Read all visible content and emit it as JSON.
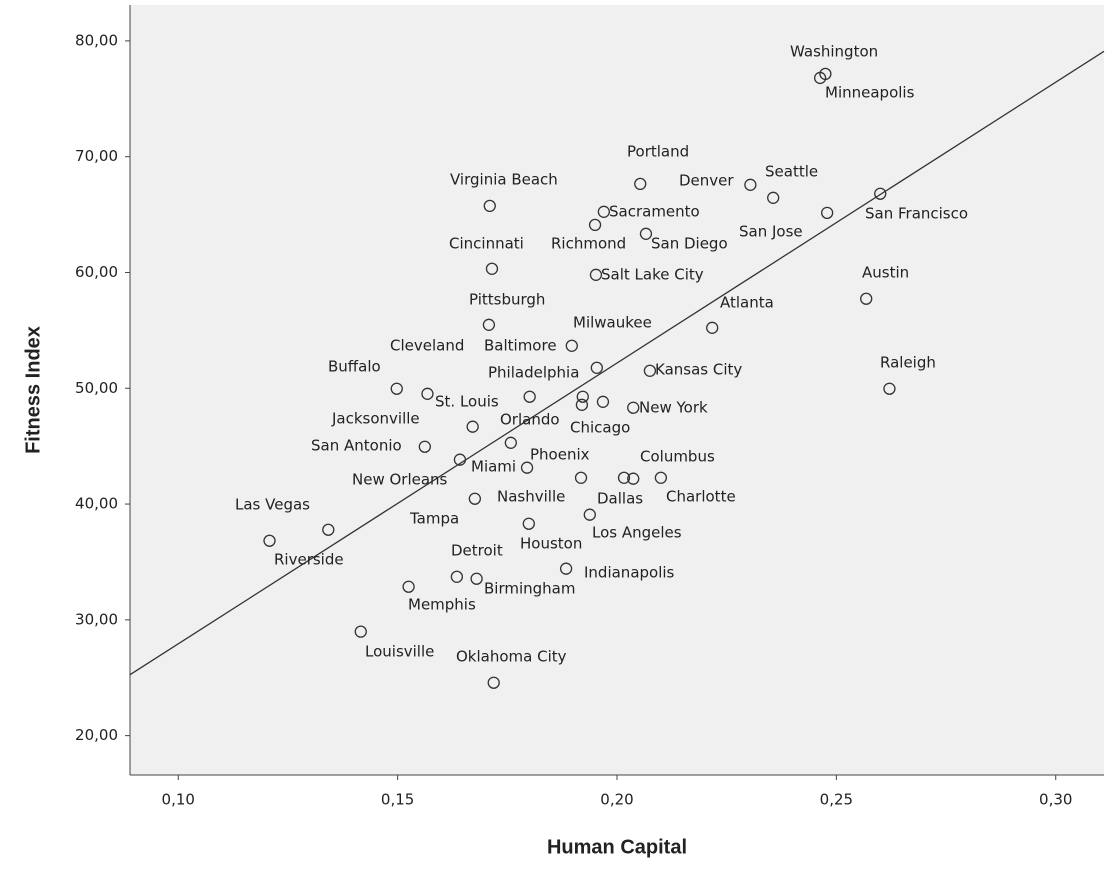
{
  "chart_data": {
    "type": "scatter",
    "x_label": "Human Capital",
    "y_label": "Fitness Index",
    "xlim": [
      0.089,
      0.311
    ],
    "ylim": [
      16.6,
      83.1
    ],
    "xticks": [
      {
        "value": 0.1,
        "label": "0,10"
      },
      {
        "value": 0.15,
        "label": "0,15"
      },
      {
        "value": 0.2,
        "label": "0,20"
      },
      {
        "value": 0.25,
        "label": "0,25"
      },
      {
        "value": 0.3,
        "label": "0,30"
      }
    ],
    "yticks": [
      {
        "value": 20,
        "label": "20,00"
      },
      {
        "value": 30,
        "label": "30,00"
      },
      {
        "value": 40,
        "label": "40,00"
      },
      {
        "value": 50,
        "label": "50,00"
      },
      {
        "value": 60,
        "label": "60,00"
      },
      {
        "value": 70,
        "label": "70,00"
      },
      {
        "value": 80,
        "label": "80,00"
      }
    ],
    "color": "#333333",
    "fit_line": {
      "x": [
        0.089,
        0.311
      ],
      "y": [
        25.26,
        79.1
      ]
    },
    "labels": [
      "Washington",
      "Minneapolis",
      "Portland",
      "Denver",
      "Seattle",
      "San Francisco",
      "San Jose",
      "Virginia Beach",
      "Sacramento",
      "Richmond",
      "San Diego",
      "Cincinnati",
      "Salt Lake City",
      "Austin",
      "Pittsburgh",
      "Atlanta",
      "Milwaukee",
      "Cleveland",
      "Baltimore",
      "Buffalo",
      "Philadelphia",
      "Kansas City",
      "Raleigh",
      "St. Louis",
      "New York",
      "Jacksonville",
      "Orlando",
      "Chicago",
      "San Antonio",
      "Phoenix",
      "Columbus",
      "Miami",
      "Tampa",
      "New Orleans",
      "Nashville",
      "Dallas",
      "Charlotte",
      "Las Vegas",
      "Los Angeles",
      "Houston",
      "Riverside",
      "Detroit",
      "Indianapolis",
      "Birmingham",
      "Memphis",
      "Louisville",
      "Oklahoma City"
    ],
    "x": [
      0.2475,
      0.2463,
      0.2053,
      0.2304,
      0.2356,
      0.26,
      0.2479,
      0.171,
      0.197,
      0.195,
      0.2066,
      0.1715,
      0.1952,
      0.2568,
      0.1708,
      0.2217,
      0.1954,
      0.1568,
      0.1897,
      0.1498,
      0.1922,
      0.2075,
      0.2621,
      0.1801,
      0.2037,
      0.1671,
      0.1758,
      0.192,
      0.1562,
      0.1795,
      0.21,
      0.1642,
      0.1968,
      0.1676,
      0.1918,
      0.2016,
      0.2037,
      0.1342,
      0.1938,
      0.1799,
      0.1208,
      0.1635,
      0.1884,
      0.168,
      0.1525,
      0.1416,
      0.1719
    ],
    "values": [
      77.15,
      76.8,
      67.65,
      67.57,
      66.45,
      66.8,
      65.15,
      65.75,
      65.24,
      64.11,
      63.34,
      60.32,
      59.8,
      57.73,
      55.48,
      55.22,
      51.77,
      49.52,
      53.67,
      49.96,
      49.27,
      51.51,
      49.96,
      49.27,
      48.32,
      46.68,
      45.29,
      48.57,
      44.95,
      43.14,
      42.27,
      43.83,
      48.83,
      40.46,
      42.27,
      42.27,
      42.19,
      37.78,
      39.08,
      38.3,
      36.83,
      33.72,
      34.42,
      33.55,
      32.86,
      28.98,
      24.57
    ]
  }
}
